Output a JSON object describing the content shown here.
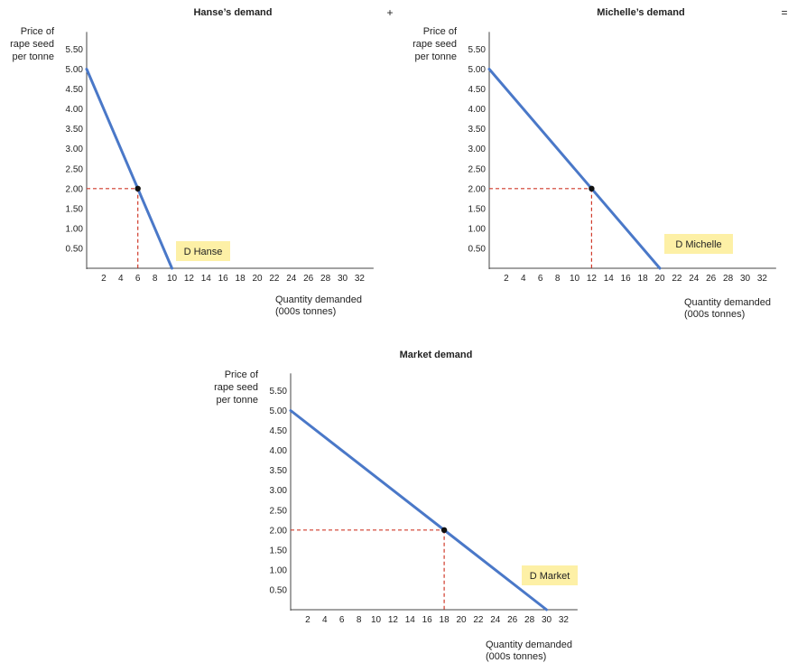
{
  "operators": {
    "plus": "+",
    "equals": "="
  },
  "colors": {
    "demand_line": "#4a78c8",
    "guide_line": "#d03a2a",
    "label_box": "#fdf0a6",
    "point": "#111111",
    "axis": "#444444"
  },
  "chart_data": [
    {
      "type": "line",
      "title": "Hanse’s demand",
      "ylabel": [
        "Price of",
        "rape seed",
        "per tonne"
      ],
      "xlabel": [
        "Quantity demanded",
        "(000s tonnes)"
      ],
      "xlim": [
        0,
        33
      ],
      "ylim": [
        0,
        5.75
      ],
      "x_ticks": [
        2,
        4,
        6,
        8,
        10,
        12,
        14,
        16,
        18,
        20,
        22,
        24,
        26,
        28,
        30,
        32
      ],
      "y_ticks": [
        "0.50",
        "1.00",
        "1.50",
        "2.00",
        "2.50",
        "3.00",
        "3.50",
        "4.00",
        "4.50",
        "5.00",
        "5.50"
      ],
      "series": [
        {
          "name": "D Hanse",
          "x": [
            0,
            10
          ],
          "y": [
            5.0,
            0.0
          ]
        }
      ],
      "highlight": {
        "x": 6,
        "y": 2.0
      }
    },
    {
      "type": "line",
      "title": "Michelle’s demand",
      "ylabel": [
        "Price of",
        "rape seed",
        "per tonne"
      ],
      "xlabel": [
        "Quantity demanded",
        "(000s tonnes)"
      ],
      "xlim": [
        0,
        33
      ],
      "ylim": [
        0,
        5.75
      ],
      "x_ticks": [
        2,
        4,
        6,
        8,
        10,
        12,
        14,
        16,
        18,
        20,
        22,
        24,
        26,
        28,
        30,
        32
      ],
      "y_ticks": [
        "0.50",
        "1.00",
        "1.50",
        "2.00",
        "2.50",
        "3.00",
        "3.50",
        "4.00",
        "4.50",
        "5.00",
        "5.50"
      ],
      "series": [
        {
          "name": "D Michelle",
          "x": [
            0,
            20
          ],
          "y": [
            5.0,
            0.0
          ]
        }
      ],
      "highlight": {
        "x": 12,
        "y": 2.0
      }
    },
    {
      "type": "line",
      "title": "Market demand",
      "ylabel": [
        "Price of",
        "rape seed",
        "per tonne"
      ],
      "xlabel": [
        "Quantity demanded",
        "(000s tonnes)"
      ],
      "xlim": [
        0,
        33
      ],
      "ylim": [
        0,
        5.75
      ],
      "x_ticks": [
        2,
        4,
        6,
        8,
        10,
        12,
        14,
        16,
        18,
        20,
        22,
        24,
        26,
        28,
        30,
        32
      ],
      "y_ticks": [
        "0.50",
        "1.00",
        "1.50",
        "2.00",
        "2.50",
        "3.00",
        "3.50",
        "4.00",
        "4.50",
        "5.00",
        "5.50"
      ],
      "series": [
        {
          "name": "D Market",
          "x": [
            0,
            30
          ],
          "y": [
            5.0,
            0.0
          ]
        }
      ],
      "highlight": {
        "x": 18,
        "y": 2.0
      }
    }
  ]
}
